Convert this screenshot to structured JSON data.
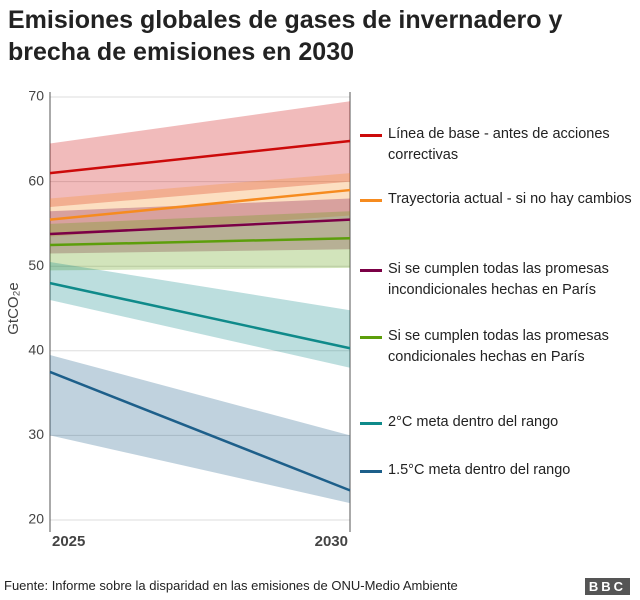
{
  "chart_data": {
    "type": "band-line",
    "title": "Emisiones globales de gases de invernadero y brecha de emisiones en 2030",
    "y_label": "GtCO₂e",
    "x": [
      2025,
      2030
    ],
    "xlim": [
      2025,
      2030
    ],
    "xticks": [
      2025,
      2030
    ],
    "ylim": [
      20,
      70
    ],
    "yticks": [
      20,
      30,
      40,
      50,
      60,
      70
    ],
    "grid": true,
    "series": [
      {
        "name": "Línea de base - antes de acciones correctivas",
        "color": "#cc0a0a",
        "values": [
          61,
          64.8
        ],
        "low": [
          57,
          60
        ],
        "high": [
          64.5,
          69.5
        ]
      },
      {
        "name": "Trayectoria actual - si no hay cambios",
        "color": "#f68b1f",
        "values": [
          55.5,
          59
        ],
        "low": [
          53.5,
          56
        ],
        "high": [
          58,
          61
        ]
      },
      {
        "name": "Si se cumplen todas las promesas incondicionales hechas en París",
        "color": "#7b0046",
        "values": [
          53.8,
          55.5
        ],
        "low": [
          51.5,
          52
        ],
        "high": [
          56.5,
          58
        ]
      },
      {
        "name": "Si se cumplen todas las promesas condicionales hechas en París",
        "color": "#5c9e0b",
        "values": [
          52.5,
          53.3
        ],
        "low": [
          49.5,
          49.8
        ],
        "high": [
          55,
          56.5
        ]
      },
      {
        "name": "2°C meta dentro del rango",
        "color": "#0f8a8a",
        "values": [
          48,
          40.3
        ],
        "low": [
          46,
          38
        ],
        "high": [
          50.5,
          44.8
        ]
      },
      {
        "name": "1.5°C meta dentro del rango",
        "color": "#1d5f8a",
        "values": [
          37.5,
          23.5
        ],
        "low": [
          30,
          22
        ],
        "high": [
          39.5,
          30
        ]
      }
    ]
  },
  "footer": {
    "source": "Fuente: Informe sobre la disparidad en las emisiones de ONU-Medio Ambiente",
    "logo": "BBC"
  }
}
